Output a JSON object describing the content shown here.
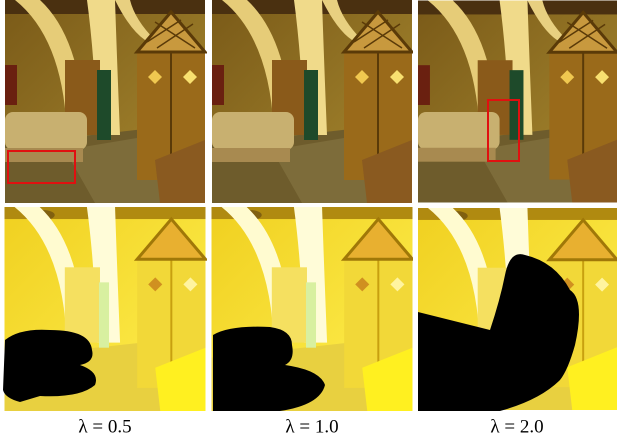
{
  "panels": [
    {
      "caption": "λ = 0.5"
    },
    {
      "caption": "λ = 1.0"
    },
    {
      "caption": "λ = 2.0"
    }
  ]
}
